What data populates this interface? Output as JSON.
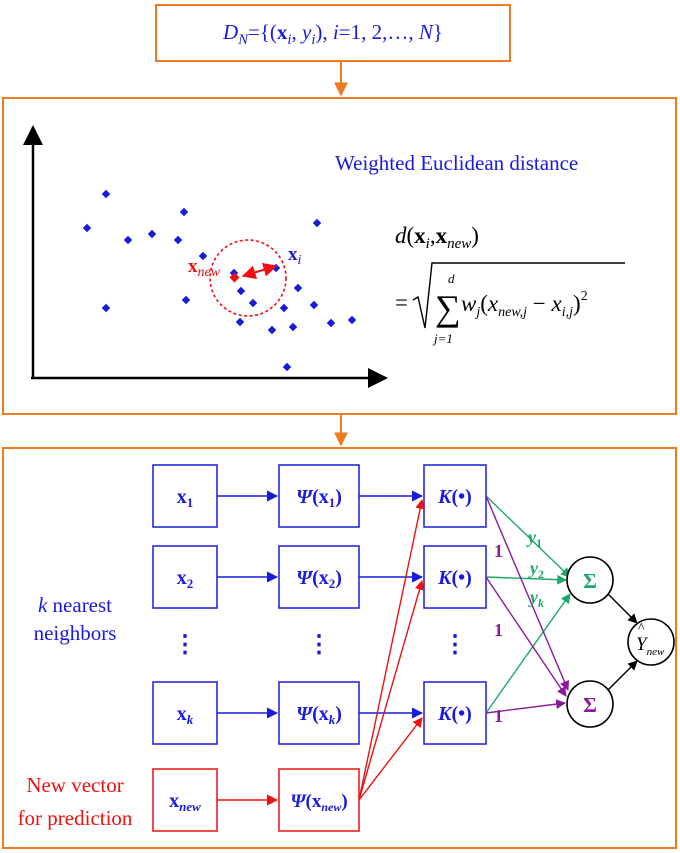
{
  "dataset": {
    "D": "D",
    "N_sub": "N",
    "eq_open": "={(",
    "x": "x",
    "i_sub": "i",
    "comma": ", ",
    "y": "y",
    "i_sub2": "i",
    "close_paren": "), ",
    "i_var": "i",
    "range": "=1, 2,…, ",
    "N": "N",
    "close_brace": "}"
  },
  "distance_panel": {
    "title": "Weighted Euclidean distance",
    "x_new_label": "x",
    "x_new_sub": "new",
    "x_i_label": "x",
    "x_i_sub": "i",
    "formula": {
      "lhs_d": "d",
      "lhs_paren_open": "(",
      "lhs_x": "x",
      "lhs_i": "i",
      "lhs_comma": ",",
      "lhs_xnew": "x",
      "lhs_new": "new",
      "lhs_paren_close": ")",
      "equals": "=",
      "sum_upper": "d",
      "sum_lower": "j=1",
      "sigma": "∑",
      "w": "w",
      "j": "j",
      "paren_open": "(",
      "x1": "x",
      "x1_sub": "new,j",
      "minus": " − ",
      "x2": "x",
      "x2_sub": "i,j",
      "paren_close": ")",
      "power": "2"
    },
    "colors": {
      "points": "#1a1adf",
      "new_point": "#ee1111",
      "axes": "#000000"
    }
  },
  "network": {
    "input_nodes": [
      {
        "x": "x",
        "sub": "1"
      },
      {
        "x": "x",
        "sub": "2"
      },
      {
        "x": "x",
        "sub": "k"
      }
    ],
    "psi_nodes": [
      {
        "psi": "Ψ",
        "open": "(",
        "x": "x",
        "sub": "1",
        "close": ")"
      },
      {
        "psi": "Ψ",
        "open": "(",
        "x": "x",
        "sub": "2",
        "close": ")"
      },
      {
        "psi": "Ψ",
        "open": "(",
        "x": "x",
        "sub": "k",
        "close": ")"
      }
    ],
    "kernel_label_K": "K",
    "kernel_label_rest": "(•)",
    "ellipsis": "⋮",
    "knn_label_k": "k",
    "knn_label_rest": " nearest",
    "knn_label_line2": "neighbors",
    "new_vector_line1": "New vector",
    "new_vector_line2": "for prediction",
    "new_input": {
      "x": "x",
      "sub": "new"
    },
    "new_psi": {
      "psi": "Ψ",
      "open": "(",
      "x": "x",
      "sub": "new",
      "close": ")"
    },
    "weights_y": [
      {
        "y": "y",
        "sub": "1"
      },
      {
        "y": "y",
        "sub": "2"
      },
      {
        "y": "y",
        "sub": "k"
      }
    ],
    "weights_one": [
      "1",
      "1",
      "1"
    ],
    "sum_symbol": "Σ",
    "output": {
      "y": "Y",
      "hat": "^",
      "sub": "new"
    },
    "colors": {
      "blue": "#1a1adf",
      "red": "#ee1111",
      "green": "#1aa86a",
      "purple": "#8a1a9a"
    }
  }
}
